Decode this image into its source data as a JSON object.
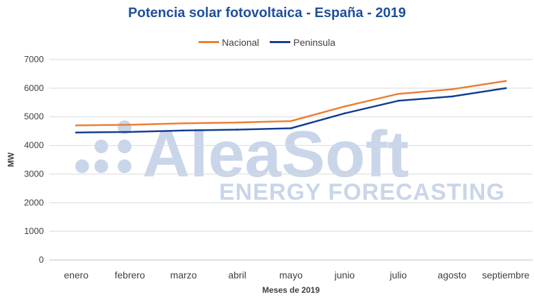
{
  "chart_data": {
    "type": "line",
    "title": "Potencia solar fotovoltaica - España - 2019",
    "xlabel": "Meses de 2019",
    "ylabel": "MW",
    "ylim": [
      0,
      7000
    ],
    "yticks": [
      0,
      1000,
      2000,
      3000,
      4000,
      5000,
      6000,
      7000
    ],
    "categories": [
      "enero",
      "febrero",
      "marzo",
      "abril",
      "mayo",
      "junio",
      "julio",
      "agosto",
      "septiembre"
    ],
    "series": [
      {
        "name": "Nacional",
        "color": "#ed7d31",
        "values": [
          4700,
          4720,
          4770,
          4800,
          4850,
          5360,
          5800,
          5960,
          6250
        ]
      },
      {
        "name": "Peninsula",
        "color": "#0f3d91",
        "values": [
          4450,
          4470,
          4520,
          4550,
          4600,
          5120,
          5560,
          5710,
          6000
        ]
      }
    ],
    "grid": true,
    "legend_position": "top-center"
  },
  "watermark": {
    "brand": "AleaSoft",
    "tagline": "ENERGY FORECASTING"
  }
}
